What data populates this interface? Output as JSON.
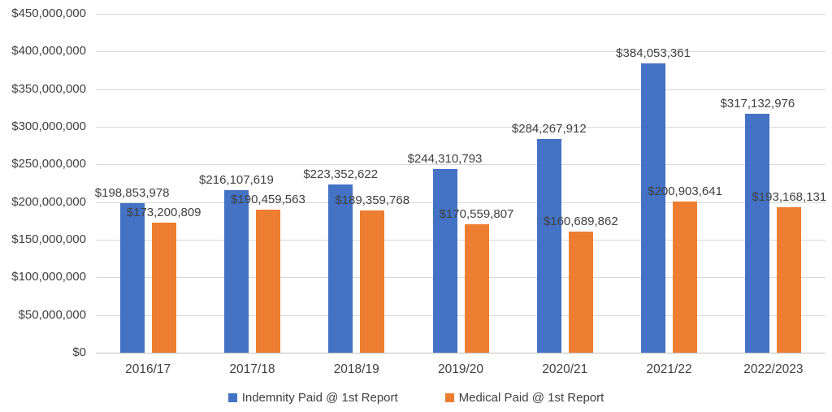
{
  "chart_data": {
    "type": "bar",
    "categories": [
      "2016/17",
      "2017/18",
      "2018/19",
      "2019/20",
      "2020/21",
      "2021/22",
      "2022/2023"
    ],
    "series": [
      {
        "name": "Indemnity Paid @ 1st Report",
        "color": "#4472C4",
        "values": [
          198853978,
          216107619,
          223352622,
          244310793,
          284267912,
          384053361,
          317132976
        ],
        "labels": [
          "$198,853,978",
          "$216,107,619",
          "$223,352,622",
          "$244,310,793",
          "$284,267,912",
          "$384,053,361",
          "$317,132,976"
        ]
      },
      {
        "name": "Medical Paid @ 1st Report",
        "color": "#ED7D31",
        "values": [
          173200809,
          190459563,
          189359768,
          170559807,
          160689862,
          200903641,
          193168131
        ],
        "labels": [
          "$173,200,809",
          "$190,459,563",
          "$189,359,768",
          "$170,559,807",
          "$160,689,862",
          "$200,903,641",
          "$193,168,131"
        ]
      }
    ],
    "title": "",
    "xlabel": "",
    "ylabel": "",
    "ylim": [
      0,
      450000000
    ],
    "ytick_step": 50000000,
    "ytick_labels": [
      "$0",
      "$50,000,000",
      "$100,000,000",
      "$150,000,000",
      "$200,000,000",
      "$250,000,000",
      "$300,000,000",
      "$350,000,000",
      "$400,000,000",
      "$450,000,000"
    ],
    "grid": true,
    "legend_position": "bottom"
  },
  "colors": {
    "gridline": "#d9d9d9",
    "axis_line": "#bfbfbf",
    "text": "#404040",
    "background": "#ffffff"
  }
}
